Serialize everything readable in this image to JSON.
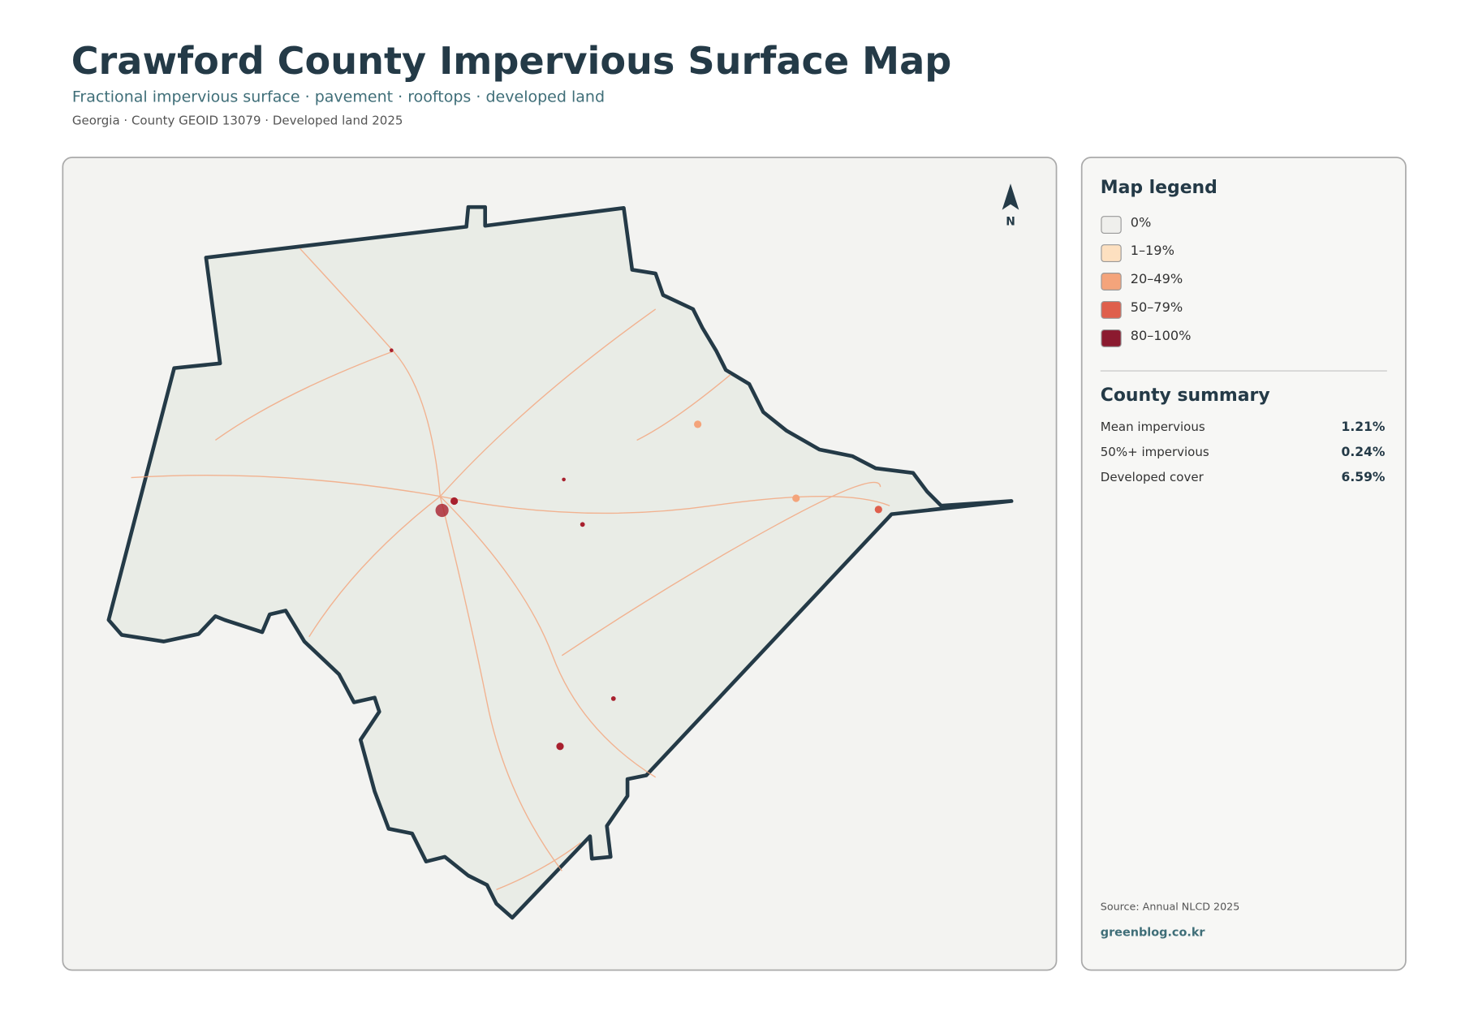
{
  "header": {
    "title": "Crawford County Impervious Surface Map",
    "subtitle": "Fractional impervious surface · pavement · rooftops · developed land",
    "meta": "Georgia · County GEOID 13079 · Developed land 2025"
  },
  "north": "N",
  "legend": {
    "title": "Map legend",
    "items": [
      {
        "label": "0%",
        "color": "#efefec"
      },
      {
        "label": "1–19%",
        "color": "#fde0c0"
      },
      {
        "label": "20–49%",
        "color": "#f4a47b"
      },
      {
        "label": "50–79%",
        "color": "#df5f4c"
      },
      {
        "label": "80–100%",
        "color": "#8b1a2f"
      }
    ]
  },
  "summary": {
    "title": "County summary",
    "rows": [
      {
        "label": "Mean impervious",
        "value": "1.21%"
      },
      {
        "label": "50%+ impervious",
        "value": "0.24%"
      },
      {
        "label": "Developed cover",
        "value": "6.59%"
      }
    ]
  },
  "footer": {
    "source": "Source: Annual NLCD 2025",
    "credit": "greenblog.co.kr"
  }
}
